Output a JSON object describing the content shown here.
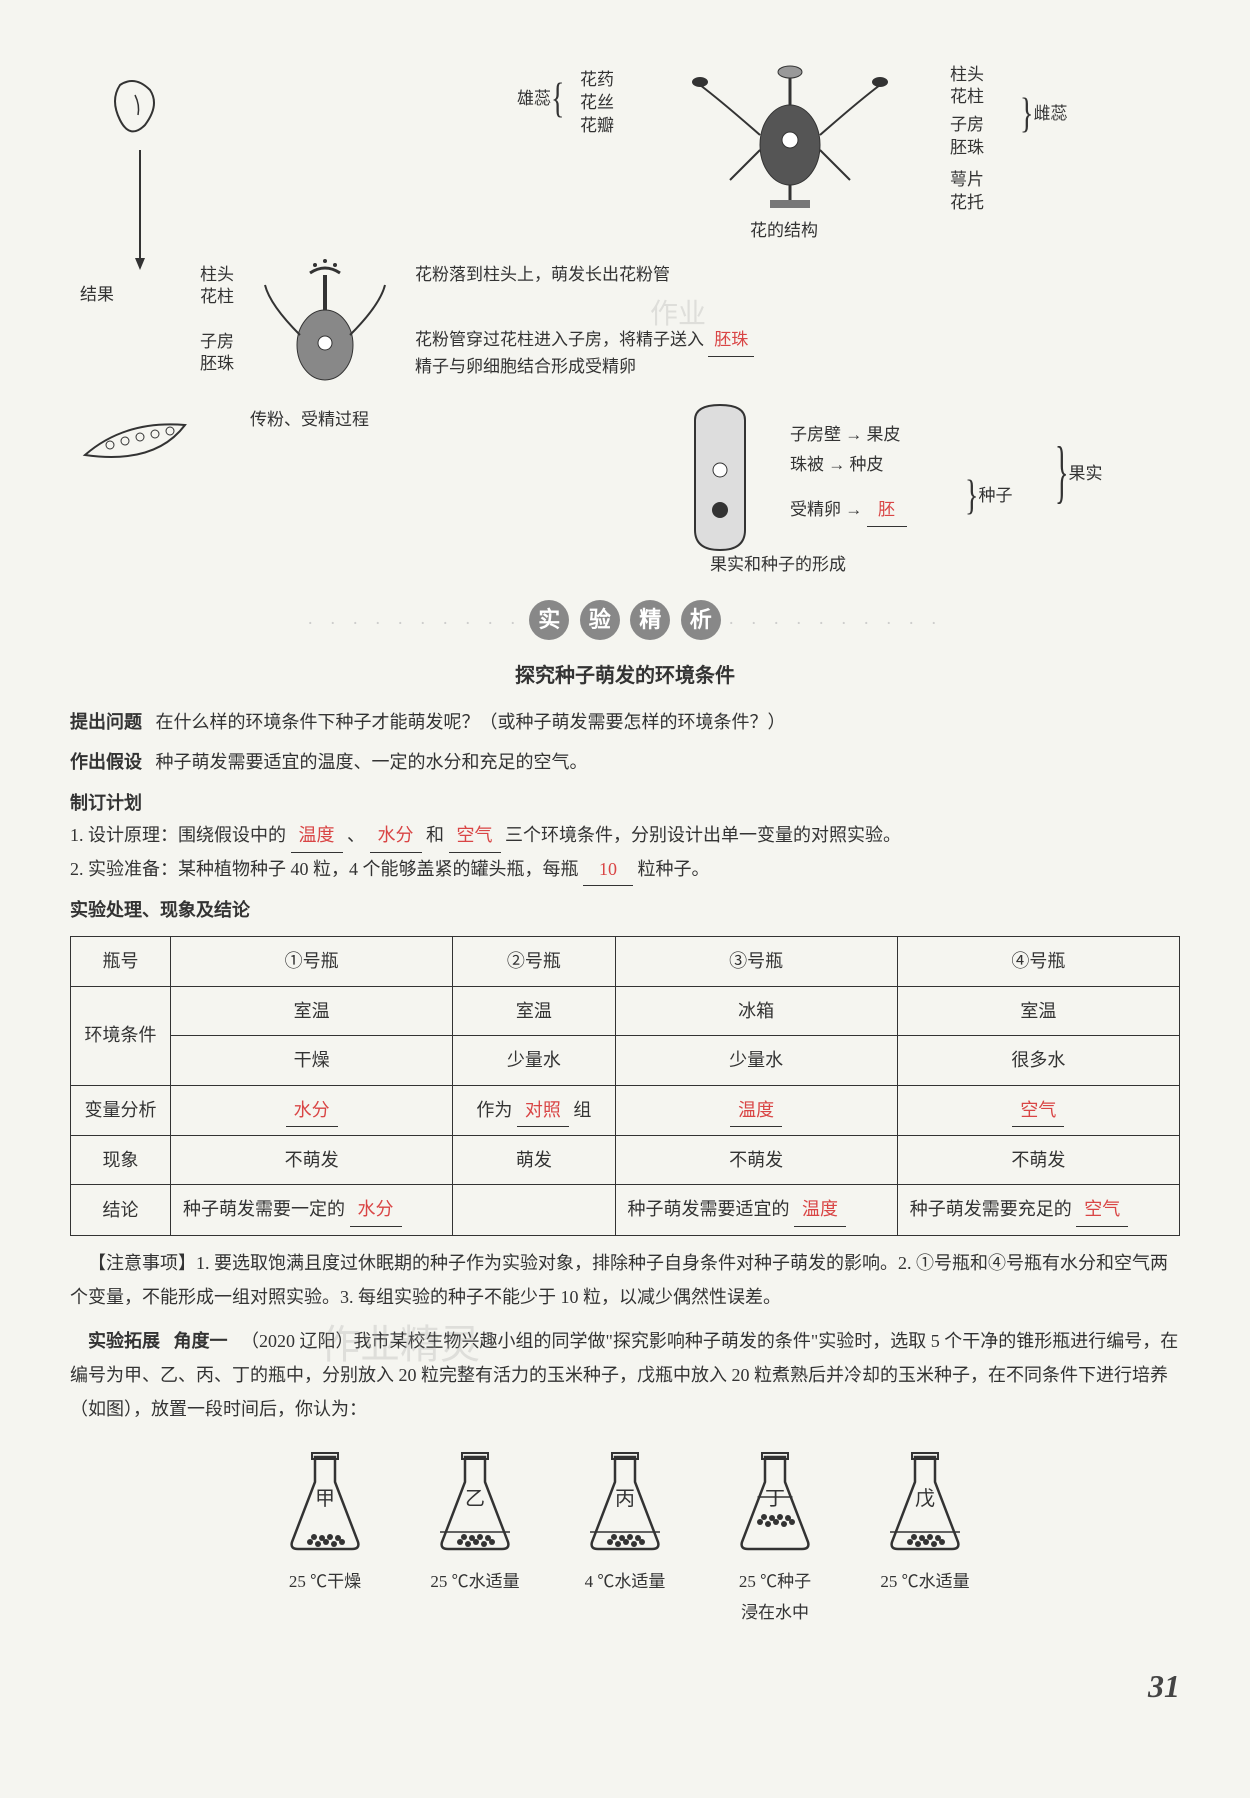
{
  "diagram": {
    "flower_structure": {
      "labels": {
        "anther": "花药",
        "filament": "花丝",
        "petal": "花瓣",
        "stamen": "雄蕊",
        "stigma": "柱头",
        "style": "花柱",
        "ovary": "子房",
        "ovule": "胚珠",
        "pistil": "雌蕊",
        "sepal": "萼片",
        "receptacle": "花托"
      },
      "caption": "花的结构"
    },
    "pollination": {
      "result_label": "结果",
      "labels": {
        "stigma": "柱头",
        "style": "花柱",
        "ovary": "子房",
        "ovule": "胚珠"
      },
      "text1": "花粉落到柱头上，萌发长出花粉管",
      "text2_prefix": "花粉管穿过花柱进入子房，将精子送入",
      "text2_answer": "胚珠",
      "text3": "精子与卵细胞结合形成受精卵",
      "caption": "传粉、受精过程"
    },
    "fruit": {
      "labels": {
        "ovary_wall": "子房壁",
        "to_pericarp": "果皮",
        "seed_coat": "珠被",
        "to_testa": "种皮",
        "fertilized_egg": "受精卵",
        "embryo_answer": "胚",
        "seed": "种子",
        "fruit": "果实",
        "arrow": "→"
      },
      "caption": "果实和种子的形成"
    },
    "watermark": "作业"
  },
  "section_header": {
    "char1": "实",
    "char2": "验",
    "char3": "精",
    "char4": "析",
    "dots": "· · · · · · · · · ·"
  },
  "subtitle": "探究种子萌发的环境条件",
  "question": {
    "label": "提出问题",
    "text": "在什么样的环境条件下种子才能萌发呢？（或种子萌发需要怎样的环境条件？）"
  },
  "hypothesis": {
    "label": "作出假设",
    "text": "种子萌发需要适宜的温度、一定的水分和充足的空气。"
  },
  "plan": {
    "label": "制订计划",
    "item1_prefix": "1. 设计原理：围绕假设中的",
    "item1_ans1": "温度",
    "item1_mid1": "、",
    "item1_ans2": "水分",
    "item1_mid2": "和",
    "item1_ans3": "空气",
    "item1_suffix": "三个环境条件，分别设计出单一变量的对照实验。",
    "item2_prefix": "2. 实验准备：某种植物种子 40 粒，4 个能够盖紧的罐头瓶，每瓶",
    "item2_ans": "10",
    "item2_suffix": "粒种子。"
  },
  "table": {
    "header_label": "实验处理、现象及结论",
    "headers": {
      "bottle": "瓶号",
      "b1": "①号瓶",
      "b2": "②号瓶",
      "b3": "③号瓶",
      "b4": "④号瓶"
    },
    "rows": {
      "env": "环境条件",
      "env_r1": [
        "室温",
        "室温",
        "冰箱",
        "室温"
      ],
      "env_r2": [
        "干燥",
        "少量水",
        "少量水",
        "很多水"
      ],
      "var": "变量分析",
      "var_c1_ans": "水分",
      "var_c2_prefix": "作为",
      "var_c2_ans": "对照",
      "var_c2_suffix": "组",
      "var_c3_ans": "温度",
      "var_c4_ans": "空气",
      "phenom": "现象",
      "phenom_cells": [
        "不萌发",
        "萌发",
        "不萌发",
        "不萌发"
      ],
      "concl": "结论",
      "concl_c1_prefix": "种子萌发需要一定的",
      "concl_c1_ans": "水分",
      "concl_c3_prefix": "种子萌发需要适宜的",
      "concl_c3_ans": "温度",
      "concl_c4_prefix": "种子萌发需要充足的",
      "concl_c4_ans": "空气"
    }
  },
  "notes": {
    "label": "【注意事项】",
    "text": "1. 要选取饱满且度过休眠期的种子作为实验对象，排除种子自身条件对种子萌发的影响。2. ①号瓶和④号瓶有水分和空气两个变量，不能形成一组对照实验。3. 每组实验的种子不能少于 10 粒，以减少偶然性误差。"
  },
  "extension": {
    "label": "实验拓展",
    "angle": "角度一",
    "source": "（2020 辽阳）",
    "text": "我市某校生物兴趣小组的同学做\"探究影响种子萌发的条件\"实验时，选取 5 个干净的锥形瓶进行编号，在编号为甲、乙、丙、丁的瓶中，分别放入 20 粒完整有活力的玉米种子，戊瓶中放入 20 粒煮熟后并冷却的玉米种子，在不同条件下进行培养（如图），放置一段时间后，你认为："
  },
  "flasks": [
    {
      "label": "甲",
      "condition": "25 ℃干燥",
      "seeds_in_water": false
    },
    {
      "label": "乙",
      "condition": "25 ℃水适量",
      "seeds_in_water": false
    },
    {
      "label": "丙",
      "condition": "4 ℃水适量",
      "seeds_in_water": false
    },
    {
      "label": "丁",
      "condition_line1": "25 ℃种子",
      "condition_line2": "浸在水中",
      "seeds_in_water": true
    },
    {
      "label": "戊",
      "condition": "25 ℃水适量",
      "seeds_in_water": false
    }
  ],
  "page_number": "31",
  "watermark2": "作业精灵"
}
